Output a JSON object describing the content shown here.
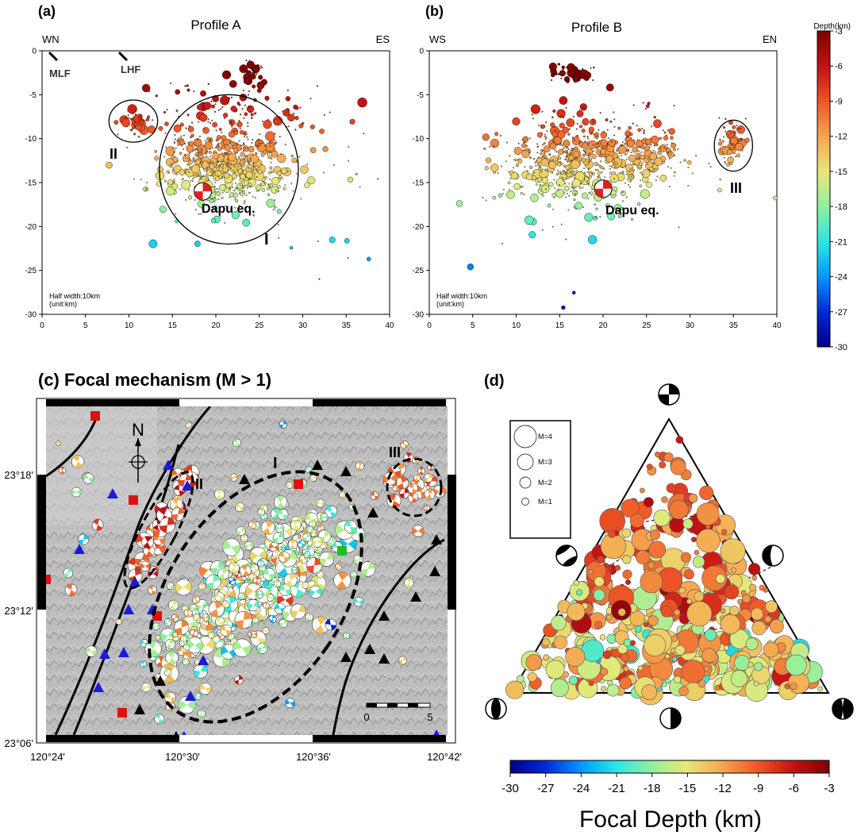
{
  "chart_data": [
    {
      "id": "a",
      "type": "scatter",
      "panel_label": "(a)",
      "title": "Profile A",
      "left_label": "WN",
      "right_label": "ES",
      "xlim": [
        0,
        40
      ],
      "ylim": [
        -30,
        0
      ],
      "x_ticks": [
        "0",
        "5",
        "10",
        "15",
        "20",
        "25",
        "30",
        "35",
        "40"
      ],
      "y_ticks": [
        "0",
        "-5",
        "-10",
        "-15",
        "-20",
        "-25",
        "-30"
      ],
      "fault_labels": [
        "MLF",
        "LHF"
      ],
      "cluster_labels": [
        "II",
        "I"
      ],
      "eq_label": "Dapu eq.",
      "note": [
        "Half width:10km",
        "(unit:km)"
      ],
      "ellipses": [
        {
          "cx": 10.5,
          "cy": -8,
          "rx": 2.8,
          "ry": 2.4,
          "label": "II"
        },
        {
          "cx": 21.5,
          "cy": -13.5,
          "rx": 8,
          "ry": 8.5,
          "label": "I"
        }
      ],
      "mainshock": {
        "x": 18.5,
        "y": -16
      },
      "clusters": [
        {
          "cx": 21,
          "cy": -13,
          "sx": 3.6,
          "sy": 2.4,
          "n": 620
        },
        {
          "cx": 10.5,
          "cy": -8,
          "sx": 0.9,
          "sy": 0.7,
          "n": 45
        },
        {
          "cx": 22,
          "cy": -7,
          "sx": 6,
          "sy": 2,
          "n": 90
        },
        {
          "cx": 24,
          "cy": -2.5,
          "sx": 1.0,
          "sy": 0.8,
          "n": 40
        },
        {
          "cx": 30,
          "cy": -14,
          "sx": 8,
          "sy": 6,
          "n": 60
        }
      ]
    },
    {
      "id": "b",
      "type": "scatter",
      "panel_label": "(b)",
      "title": "Profile B",
      "left_label": "WS",
      "right_label": "EN",
      "xlim": [
        0,
        40
      ],
      "ylim": [
        -30,
        0
      ],
      "x_ticks": [
        "0",
        "5",
        "10",
        "15",
        "20",
        "25",
        "30",
        "35",
        "40"
      ],
      "y_ticks": [
        "0",
        "-5",
        "-10",
        "-15",
        "-20",
        "-25",
        "-30"
      ],
      "cluster_labels": [
        "III"
      ],
      "eq_label": "Dapu eq.",
      "note": [
        "Half width:10km",
        "(unit:km)"
      ],
      "ellipses": [
        {
          "cx": 35,
          "cy": -10.8,
          "rx": 2.2,
          "ry": 2.9,
          "label": "III"
        }
      ],
      "mainshock": {
        "x": 20,
        "y": -15.7
      },
      "clusters": [
        {
          "cx": 17,
          "cy": -12.5,
          "sx": 4.5,
          "sy": 2.6,
          "n": 560
        },
        {
          "cx": 25,
          "cy": -11.5,
          "sx": 2.0,
          "sy": 1.6,
          "n": 120
        },
        {
          "cx": 35,
          "cy": -10.5,
          "sx": 0.8,
          "sy": 1.0,
          "n": 70
        },
        {
          "cx": 16,
          "cy": -2.5,
          "sx": 1.6,
          "sy": 0.5,
          "n": 50
        },
        {
          "cx": 22,
          "cy": -16,
          "sx": 10,
          "sy": 5,
          "n": 50
        }
      ]
    },
    {
      "id": "colorbar-top",
      "type": "colorbar",
      "label": "Depth(km)",
      "range": [
        -30,
        -3
      ],
      "ticks": [
        "-3",
        "-6",
        "-9",
        "-12",
        "-15",
        "-18",
        "-21",
        "-24",
        "-27",
        "-30"
      ]
    },
    {
      "id": "c",
      "type": "map",
      "title": "(c) Focal mechanism (M > 1)",
      "lon_ticks": [
        "120°24'",
        "120°30'",
        "120°36'",
        "120°42'"
      ],
      "lat_ticks": [
        "23°18'",
        "23°12'",
        "23°06'"
      ],
      "north_label": "N",
      "cluster_labels": [
        "I",
        "II",
        "III"
      ],
      "scale_labels": [
        "0",
        "5"
      ]
    },
    {
      "id": "d",
      "type": "ternary",
      "panel_label": "(d)",
      "legend": [
        "M=4",
        "M=3",
        "M=2",
        "M=1"
      ],
      "magnitudes": [
        4,
        3,
        2,
        1
      ]
    },
    {
      "id": "colorbar-bottom",
      "type": "colorbar",
      "label": "Focal Depth (km)",
      "range": [
        -30,
        -3
      ],
      "ticks": [
        "-30",
        "-27",
        "-24",
        "-21",
        "-18",
        "-15",
        "-12",
        "-9",
        "-6",
        "-3"
      ]
    }
  ],
  "colors": {
    "depth_scale": [
      "#00008b",
      "#0028d8",
      "#0096ff",
      "#28e6e6",
      "#8cf0a0",
      "#e8e878",
      "#f5aa50",
      "#f05a28",
      "#c81414",
      "#800000"
    ]
  }
}
